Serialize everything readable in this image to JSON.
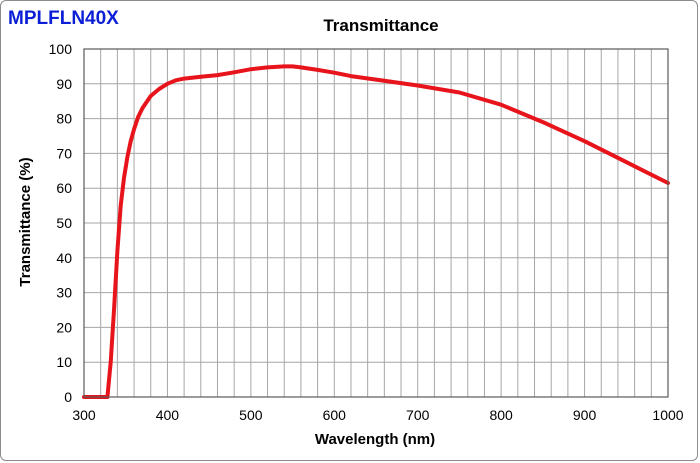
{
  "model_label": "MPLFLN40X",
  "colors": {
    "model_label": "#0b1fd6",
    "series_line": "#e8141c",
    "grid": "#a6a6a6",
    "axis": "#595959",
    "frame": "#8c8c8c"
  },
  "chart_data": {
    "type": "line",
    "title": "Transmittance",
    "xlabel": "Wavelength (nm)",
    "ylabel": "Transmittance (%)",
    "xlim": [
      300,
      1000
    ],
    "ylim": [
      0,
      100
    ],
    "x_ticks": [
      300,
      400,
      500,
      600,
      700,
      800,
      900,
      1000
    ],
    "y_ticks": [
      0,
      10,
      20,
      30,
      40,
      50,
      60,
      70,
      80,
      90,
      100
    ],
    "x_grid_step": 20,
    "y_grid_step": 10,
    "grid": true,
    "series": [
      {
        "name": "MPLFLN40X",
        "x": [
          300,
          320,
          328,
          332,
          336,
          340,
          344,
          348,
          352,
          356,
          360,
          365,
          370,
          380,
          390,
          400,
          410,
          420,
          440,
          460,
          480,
          500,
          520,
          540,
          550,
          560,
          580,
          600,
          620,
          650,
          700,
          750,
          800,
          850,
          900,
          950,
          1000
        ],
        "y": [
          0,
          0,
          0,
          10,
          25,
          42,
          55,
          63,
          69,
          73.5,
          77,
          80.5,
          83,
          86.5,
          88.5,
          90,
          91,
          91.5,
          92,
          92.5,
          93.3,
          94.2,
          94.7,
          95,
          95,
          94.7,
          94,
          93.2,
          92.2,
          91.2,
          89.5,
          87.5,
          84,
          79,
          73.5,
          67.5,
          61.5
        ]
      }
    ]
  }
}
